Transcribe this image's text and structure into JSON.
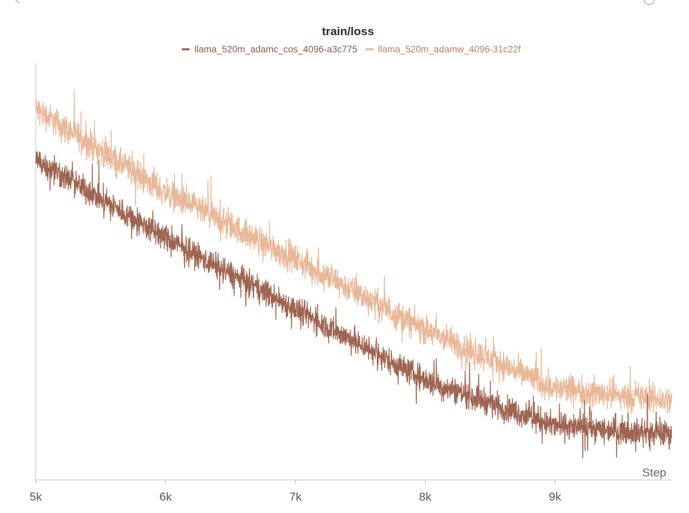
{
  "window": {
    "back_icon": "chevron-left-icon",
    "settings_icon": "gear-icon"
  },
  "chart_data": {
    "type": "line",
    "title": "train/loss",
    "xlabel": "Step",
    "ylabel": "",
    "xlim": [
      5000,
      9900
    ],
    "ylim": [
      0,
      1
    ],
    "x_ticks": [
      5000,
      6000,
      7000,
      8000,
      9000
    ],
    "x_tick_labels": [
      "5k",
      "6k",
      "7k",
      "8k",
      "9k"
    ],
    "y_tick_labels": [],
    "grid": false,
    "legend_position": "top-center",
    "series": [
      {
        "name": "llama_520m_adamc_cos_4096-a3c775",
        "color": "#9e6450",
        "trend_x": [
          5000,
          6000,
          7000,
          8000,
          9000,
          9900
        ],
        "trend_y": [
          0.77,
          0.58,
          0.41,
          0.24,
          0.13,
          0.11
        ],
        "noise_amplitude": 0.045
      },
      {
        "name": "llama_520m_adamw_4096-31c22f",
        "color": "#e9b898",
        "trend_x": [
          5000,
          6000,
          7000,
          8000,
          9000,
          9900
        ],
        "trend_y": [
          0.89,
          0.69,
          0.53,
          0.36,
          0.22,
          0.19
        ],
        "noise_amplitude": 0.05
      }
    ]
  }
}
